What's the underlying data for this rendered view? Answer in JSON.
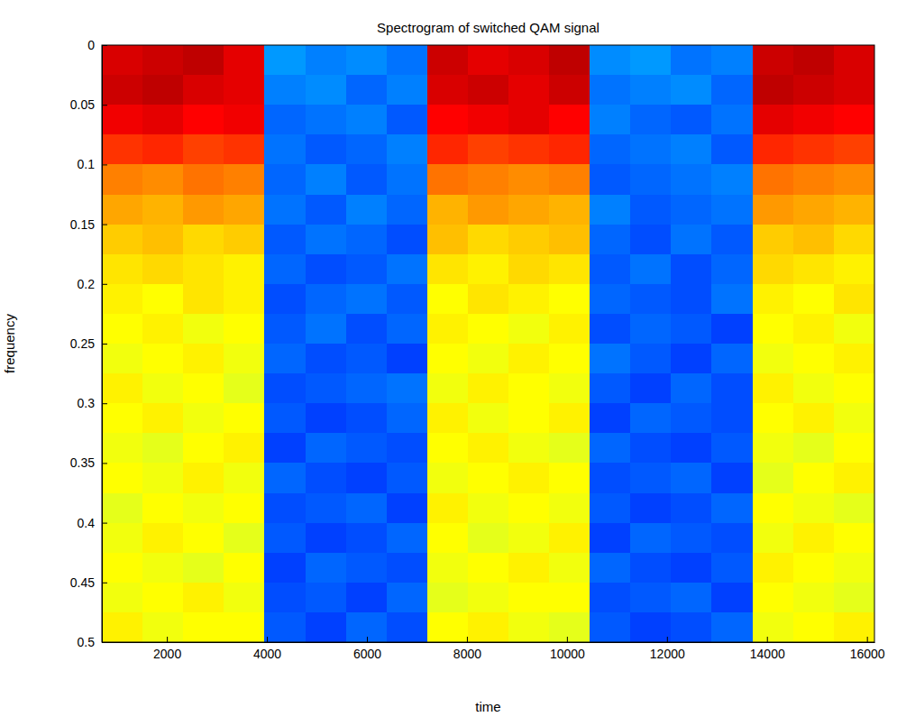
{
  "chart_data": {
    "type": "heatmap",
    "title": "Spectrogram of switched QAM signal",
    "x_label": "time",
    "y_label": "frequency",
    "xlim": [
      700,
      16150
    ],
    "ylim": [
      0,
      0.5
    ],
    "xticks": [
      2000,
      4000,
      6000,
      8000,
      10000,
      12000,
      14000,
      16000
    ],
    "yticks": [
      0,
      0.05,
      0.1,
      0.15,
      0.2,
      0.25,
      0.3,
      0.35,
      0.4,
      0.45,
      0.5
    ],
    "zlim": [
      -30,
      50
    ],
    "x": [
      1107,
      1920,
      2733,
      3546,
      4359,
      5172,
      5985,
      6798,
      7611,
      8424,
      9237,
      10050,
      10863,
      11676,
      12489,
      13302,
      14115,
      14928,
      15741
    ],
    "y": [
      0.0125,
      0.0375,
      0.0625,
      0.0875,
      0.1125,
      0.1375,
      0.1625,
      0.1875,
      0.2125,
      0.2375,
      0.2625,
      0.2875,
      0.3125,
      0.3375,
      0.3625,
      0.3875,
      0.4125,
      0.4375,
      0.4625,
      0.4875
    ],
    "z": [
      [
        43,
        44,
        45,
        42,
        -8,
        -10,
        -9,
        -11,
        44,
        42,
        43,
        45,
        -9,
        -8,
        -11,
        -10,
        44,
        45,
        43
      ],
      [
        44,
        45,
        43,
        42,
        -10,
        -9,
        -12,
        -10,
        43,
        44,
        42,
        44,
        -11,
        -10,
        -9,
        -12,
        45,
        44,
        43
      ],
      [
        41,
        42,
        40,
        41,
        -12,
        -11,
        -10,
        -13,
        40,
        41,
        42,
        40,
        -10,
        -12,
        -13,
        -11,
        42,
        41,
        40
      ],
      [
        36,
        37,
        35,
        36,
        -11,
        -13,
        -12,
        -10,
        37,
        35,
        36,
        37,
        -12,
        -11,
        -10,
        -13,
        37,
        36,
        35
      ],
      [
        30,
        29,
        31,
        30,
        -12,
        -10,
        -13,
        -11,
        31,
        30,
        29,
        30,
        -13,
        -12,
        -11,
        -10,
        31,
        30,
        29
      ],
      [
        27,
        26,
        28,
        27,
        -11,
        -13,
        -10,
        -12,
        26,
        28,
        27,
        26,
        -10,
        -13,
        -12,
        -11,
        28,
        27,
        26
      ],
      [
        24,
        25,
        23,
        24,
        -13,
        -11,
        -12,
        -14,
        25,
        23,
        24,
        25,
        -12,
        -14,
        -11,
        -13,
        24,
        25,
        23
      ],
      [
        22,
        23,
        22,
        21,
        -12,
        -14,
        -13,
        -11,
        22,
        21,
        23,
        22,
        -13,
        -11,
        -14,
        -12,
        23,
        22,
        21
      ],
      [
        21,
        20,
        22,
        21,
        -14,
        -12,
        -11,
        -13,
        20,
        22,
        21,
        20,
        -12,
        -13,
        -14,
        -11,
        21,
        20,
        22
      ],
      [
        20,
        21,
        19,
        20,
        -13,
        -11,
        -14,
        -12,
        21,
        20,
        19,
        21,
        -14,
        -12,
        -13,
        -15,
        20,
        21,
        19
      ],
      [
        19,
        20,
        21,
        19,
        -12,
        -14,
        -13,
        -15,
        20,
        19,
        21,
        20,
        -11,
        -13,
        -15,
        -12,
        19,
        20,
        21
      ],
      [
        21,
        19,
        20,
        18,
        -14,
        -13,
        -12,
        -11,
        19,
        21,
        20,
        19,
        -13,
        -15,
        -12,
        -14,
        21,
        19,
        20
      ],
      [
        20,
        21,
        19,
        20,
        -13,
        -15,
        -14,
        -12,
        21,
        19,
        20,
        21,
        -15,
        -12,
        -13,
        -14,
        20,
        21,
        19
      ],
      [
        19,
        18,
        20,
        21,
        -15,
        -12,
        -13,
        -14,
        20,
        21,
        19,
        18,
        -12,
        -14,
        -15,
        -13,
        19,
        18,
        20
      ],
      [
        20,
        19,
        21,
        19,
        -12,
        -14,
        -15,
        -13,
        19,
        20,
        21,
        20,
        -14,
        -13,
        -12,
        -15,
        18,
        20,
        21
      ],
      [
        18,
        20,
        19,
        20,
        -14,
        -13,
        -12,
        -15,
        21,
        19,
        20,
        19,
        -13,
        -15,
        -14,
        -12,
        20,
        19,
        18
      ],
      [
        19,
        21,
        20,
        18,
        -13,
        -15,
        -14,
        -12,
        20,
        18,
        19,
        21,
        -15,
        -12,
        -13,
        -14,
        19,
        21,
        20
      ],
      [
        20,
        19,
        18,
        20,
        -15,
        -12,
        -13,
        -14,
        19,
        20,
        21,
        19,
        -12,
        -14,
        -15,
        -13,
        21,
        20,
        19
      ],
      [
        19,
        20,
        21,
        19,
        -14,
        -13,
        -15,
        -12,
        18,
        19,
        20,
        20,
        -14,
        -13,
        -12,
        -15,
        20,
        19,
        18
      ],
      [
        21,
        19,
        20,
        20,
        -13,
        -15,
        -12,
        -14,
        20,
        21,
        19,
        18,
        -13,
        -15,
        -14,
        -12,
        19,
        20,
        21
      ]
    ]
  }
}
